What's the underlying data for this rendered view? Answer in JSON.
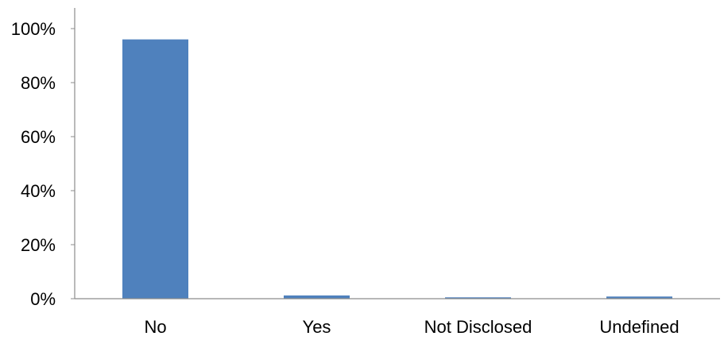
{
  "chart_data": {
    "type": "bar",
    "title": "",
    "xlabel": "",
    "ylabel": "",
    "categories": [
      "No",
      "Yes",
      "Not Disclosed",
      "Undefined"
    ],
    "values": [
      96,
      1.2,
      0.5,
      0.8
    ],
    "ylim": [
      0,
      100
    ],
    "y_ticks": [
      0,
      20,
      40,
      60,
      80,
      100
    ],
    "y_tick_labels": [
      "0%",
      "20%",
      "40%",
      "60%",
      "80%",
      "100%"
    ],
    "grid": false,
    "legend": "none",
    "bar_color": "#4F81BD",
    "axis_color": "#8C8C8C"
  }
}
